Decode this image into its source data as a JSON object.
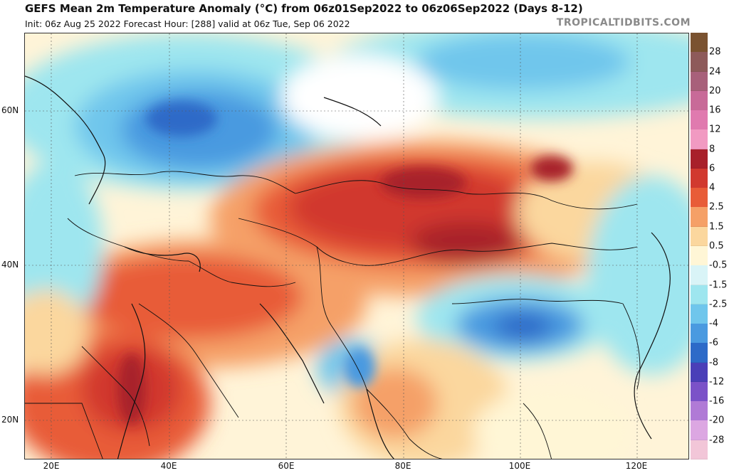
{
  "header": {
    "title": "GEFS Mean 2m Temperature Anomaly (°C) from 06z01Sep2022 to 06z06Sep2022 (Days 8-12)",
    "subtitle": "Init: 06z Aug 25 2022   Forecast Hour: [288]   valid at 06z Tue, Sep 06 2022",
    "brand": "TROPICALTIDBITS.COM"
  },
  "axes": {
    "latitudes": [
      {
        "label": "60N",
        "value": 60
      },
      {
        "label": "40N",
        "value": 40
      },
      {
        "label": "20N",
        "value": 20
      }
    ],
    "longitudes": [
      {
        "label": "20E",
        "value": 20
      },
      {
        "label": "40E",
        "value": 40
      },
      {
        "label": "60E",
        "value": 60
      },
      {
        "label": "80E",
        "value": 80
      },
      {
        "label": "100E",
        "value": 100
      },
      {
        "label": "120E",
        "value": 120
      }
    ]
  },
  "colorbar": {
    "labels": [
      "28",
      "24",
      "20",
      "16",
      "12",
      "8",
      "6",
      "4",
      "2.5",
      "1.5",
      "0.5",
      "-0.5",
      "-1.5",
      "-2.5",
      "-4",
      "-6",
      "-8",
      "-12",
      "-16",
      "-20",
      "-28"
    ],
    "colors": [
      "#7a5230",
      "#8e5a5a",
      "#a8607a",
      "#c86a98",
      "#e07aaf",
      "#f19ac2",
      "#a8202a",
      "#d1392f",
      "#e85c38",
      "#f5a067",
      "#fbd79e",
      "#fff6d6",
      "#d9f4f7",
      "#9ee6ef",
      "#6fc6ec",
      "#4a9ae0",
      "#2d6ac8",
      "#4a3fb8",
      "#7b52c8",
      "#b07ad6",
      "#dca7e2",
      "#f2c6d8"
    ]
  }
}
